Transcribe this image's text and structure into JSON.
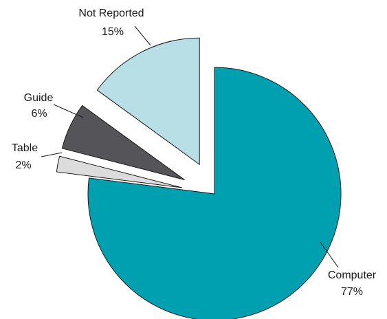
{
  "chart_data": {
    "type": "pie",
    "exploded": true,
    "slices": [
      {
        "label": "Computer",
        "value": 77,
        "pct_label": "77%",
        "color": "#00a0b0"
      },
      {
        "label": "Table",
        "value": 2,
        "pct_label": "2%",
        "color": "#dcdcdc"
      },
      {
        "label": "Guide",
        "value": 6,
        "pct_label": "6%",
        "color": "#555559"
      },
      {
        "label": "Not Reported",
        "value": 15,
        "pct_label": "15%",
        "color": "#b9dfe6"
      }
    ],
    "outline_color": "#1a1a1a"
  }
}
